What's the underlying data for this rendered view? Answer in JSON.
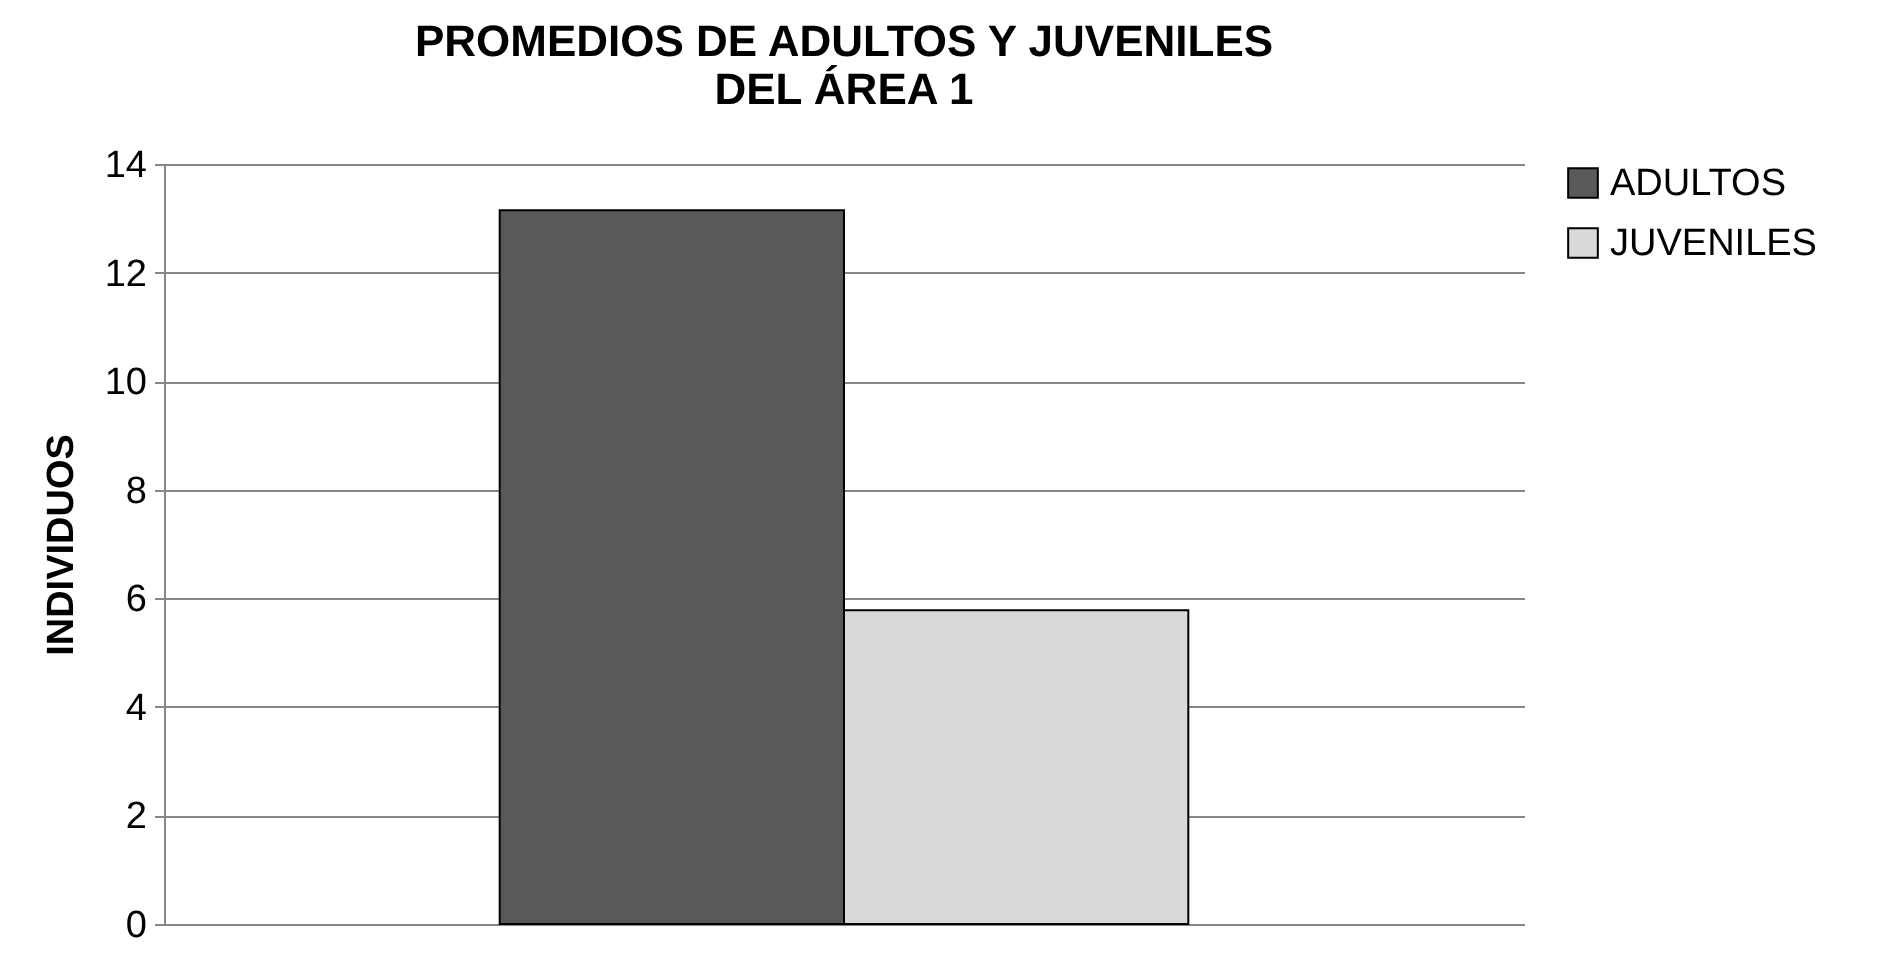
{
  "chart_data": {
    "type": "bar",
    "title": "PROMEDIOS DE ADULTOS Y JUVENILES\nDEL ÁREA 1",
    "ylabel": "INDIVIDUOS",
    "categories": [
      null
    ],
    "series": [
      {
        "name": "ADULTOS",
        "color": "#595959",
        "values": [
          13.15
        ]
      },
      {
        "name": "JUVENILES",
        "color": "#d9d9d9",
        "values": [
          5.78
        ]
      }
    ],
    "ylim": [
      0,
      14
    ],
    "yticks": [
      0,
      2,
      4,
      6,
      8,
      10,
      12,
      14
    ],
    "grid": "y",
    "legend": "right"
  }
}
